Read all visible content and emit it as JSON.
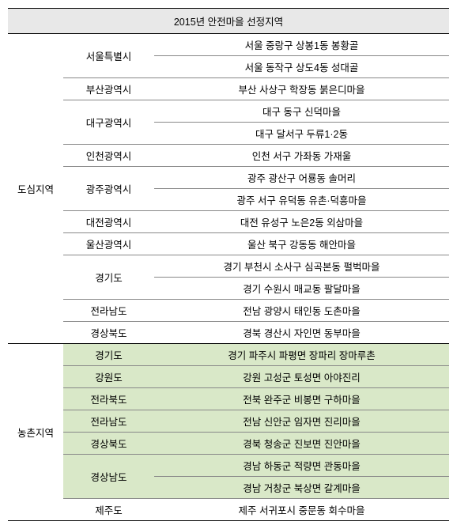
{
  "title": "2015년 안전마을 선정지역",
  "colors": {
    "header_bg": "#e8e8e8",
    "highlight_bg": "#d9e8c8",
    "border": "#888888",
    "strong_border": "#000000",
    "background": "#ffffff"
  },
  "font_size": 12.5,
  "regions": {
    "urban": {
      "label": "도심지역",
      "rows": [
        {
          "province": "서울특별시",
          "rowspan": 2,
          "location": "서울 중랑구 상봉1동 봉황골",
          "highlight": false
        },
        {
          "province": "",
          "rowspan": 0,
          "location": "서울 동작구 상도4동 성대골",
          "highlight": false
        },
        {
          "province": "부산광역시",
          "rowspan": 1,
          "location": "부산 사상구 학장동 붉은디마을",
          "highlight": false
        },
        {
          "province": "대구광역시",
          "rowspan": 2,
          "location": "대구 동구 신덕마을",
          "highlight": false
        },
        {
          "province": "",
          "rowspan": 0,
          "location": "대구 달서구 두류1·2동",
          "highlight": false
        },
        {
          "province": "인천광역시",
          "rowspan": 1,
          "location": "인천 서구 가좌동 가재울",
          "highlight": false
        },
        {
          "province": "광주광역시",
          "rowspan": 2,
          "location": "광주 광산구 어룡동 솔머리",
          "highlight": false
        },
        {
          "province": "",
          "rowspan": 0,
          "location": "광주 서구 유덕동 유촌·덕흥마을",
          "highlight": false
        },
        {
          "province": "대전광역시",
          "rowspan": 1,
          "location": "대전 유성구 노은2동 외삼마을",
          "highlight": false
        },
        {
          "province": "울산광역시",
          "rowspan": 1,
          "location": "울산 북구 강동동 해안마을",
          "highlight": false
        },
        {
          "province": "경기도",
          "rowspan": 2,
          "location": "경기 부천시 소사구 심곡본동 펄벅마을",
          "highlight": false
        },
        {
          "province": "",
          "rowspan": 0,
          "location": "경기 수원시 매교동 팔달마을",
          "highlight": false
        },
        {
          "province": "전라남도",
          "rowspan": 1,
          "location": "전남 광양시 태인동 도촌마을",
          "highlight": false
        },
        {
          "province": "경상북도",
          "rowspan": 1,
          "location": "경북 경산시 자인면 동부마을",
          "highlight": false
        }
      ]
    },
    "rural": {
      "label": "농촌지역",
      "rows": [
        {
          "province": "경기도",
          "rowspan": 1,
          "location": "경기 파주시 파평면 장파리 장마루촌",
          "highlight": true
        },
        {
          "province": "강원도",
          "rowspan": 1,
          "location": "강원 고성군 토성면 아야진리",
          "highlight": true
        },
        {
          "province": "전라북도",
          "rowspan": 1,
          "location": "전북 완주군 비봉면 구하마을",
          "highlight": true
        },
        {
          "province": "전라남도",
          "rowspan": 1,
          "location": "전남 신안군 임자면 진리마을",
          "highlight": true
        },
        {
          "province": "경상북도",
          "rowspan": 1,
          "location": "경북 청송군 진보면 진안마을",
          "highlight": true
        },
        {
          "province": "경상남도",
          "rowspan": 2,
          "location": "경남 하동군 적량면 관동마을",
          "highlight": true
        },
        {
          "province": "",
          "rowspan": 0,
          "location": "경남 거창군 북상면 갈계마을",
          "highlight": true
        },
        {
          "province": "제주도",
          "rowspan": 1,
          "location": "제주 서귀포시 중문동 회수마을",
          "highlight": false
        }
      ]
    }
  }
}
